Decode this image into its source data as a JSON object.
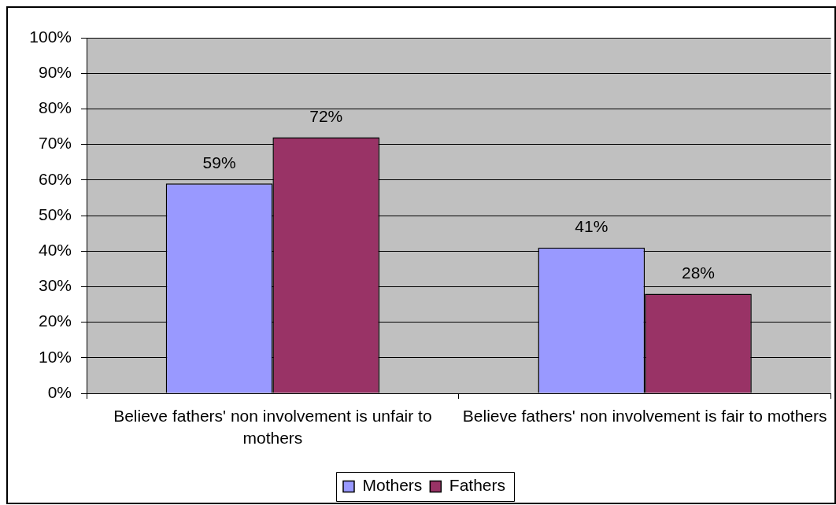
{
  "chart_data": {
    "type": "bar",
    "categories": [
      "Believe fathers' non involvement is unfair to mothers",
      "Believe fathers' non involvement is fair to mothers"
    ],
    "series": [
      {
        "name": "Mothers",
        "color": "#9999ff",
        "values": [
          59,
          41
        ],
        "value_labels": [
          "59%",
          "41%"
        ]
      },
      {
        "name": "Fathers",
        "color": "#993366",
        "values": [
          72,
          28
        ],
        "value_labels": [
          "72%",
          "28%"
        ]
      }
    ],
    "ylim": [
      0,
      100
    ],
    "yticks": [
      {
        "value": 0,
        "label": "0%"
      },
      {
        "value": 10,
        "label": "10%"
      },
      {
        "value": 20,
        "label": "20%"
      },
      {
        "value": 30,
        "label": "30%"
      },
      {
        "value": 40,
        "label": "40%"
      },
      {
        "value": 50,
        "label": "50%"
      },
      {
        "value": 60,
        "label": "60%"
      },
      {
        "value": 70,
        "label": "70%"
      },
      {
        "value": 80,
        "label": "80%"
      },
      {
        "value": 90,
        "label": "90%"
      },
      {
        "value": 100,
        "label": "100%"
      }
    ],
    "grid": "y",
    "legend": "bottom"
  }
}
